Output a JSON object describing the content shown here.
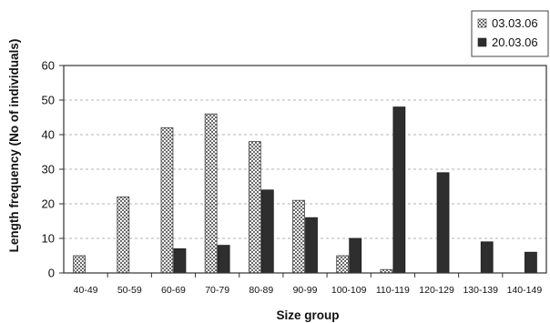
{
  "chart_data": {
    "type": "bar",
    "title": "",
    "xlabel": "Size group",
    "ylabel": "Length frequency (No of individuals)",
    "ylim": [
      0,
      60
    ],
    "yticks": [
      0,
      10,
      20,
      30,
      40,
      50,
      60
    ],
    "grid": "horizontal dashed",
    "legend_position": "top-right",
    "categories": [
      "40-49",
      "50-59",
      "60-69",
      "70-79",
      "80-89",
      "90-99",
      "100-109",
      "110-119",
      "120-129",
      "130-139",
      "140-149"
    ],
    "series": [
      {
        "name": "03.03.06",
        "pattern": "checkered",
        "color": "#8a8a8a",
        "values": [
          5,
          22,
          42,
          46,
          38,
          21,
          5,
          1,
          0,
          0,
          0
        ]
      },
      {
        "name": "20.03.06",
        "pattern": "solid",
        "color": "#2e2e2e",
        "values": [
          0,
          0,
          7,
          8,
          24,
          16,
          10,
          48,
          29,
          9,
          6
        ]
      }
    ]
  }
}
